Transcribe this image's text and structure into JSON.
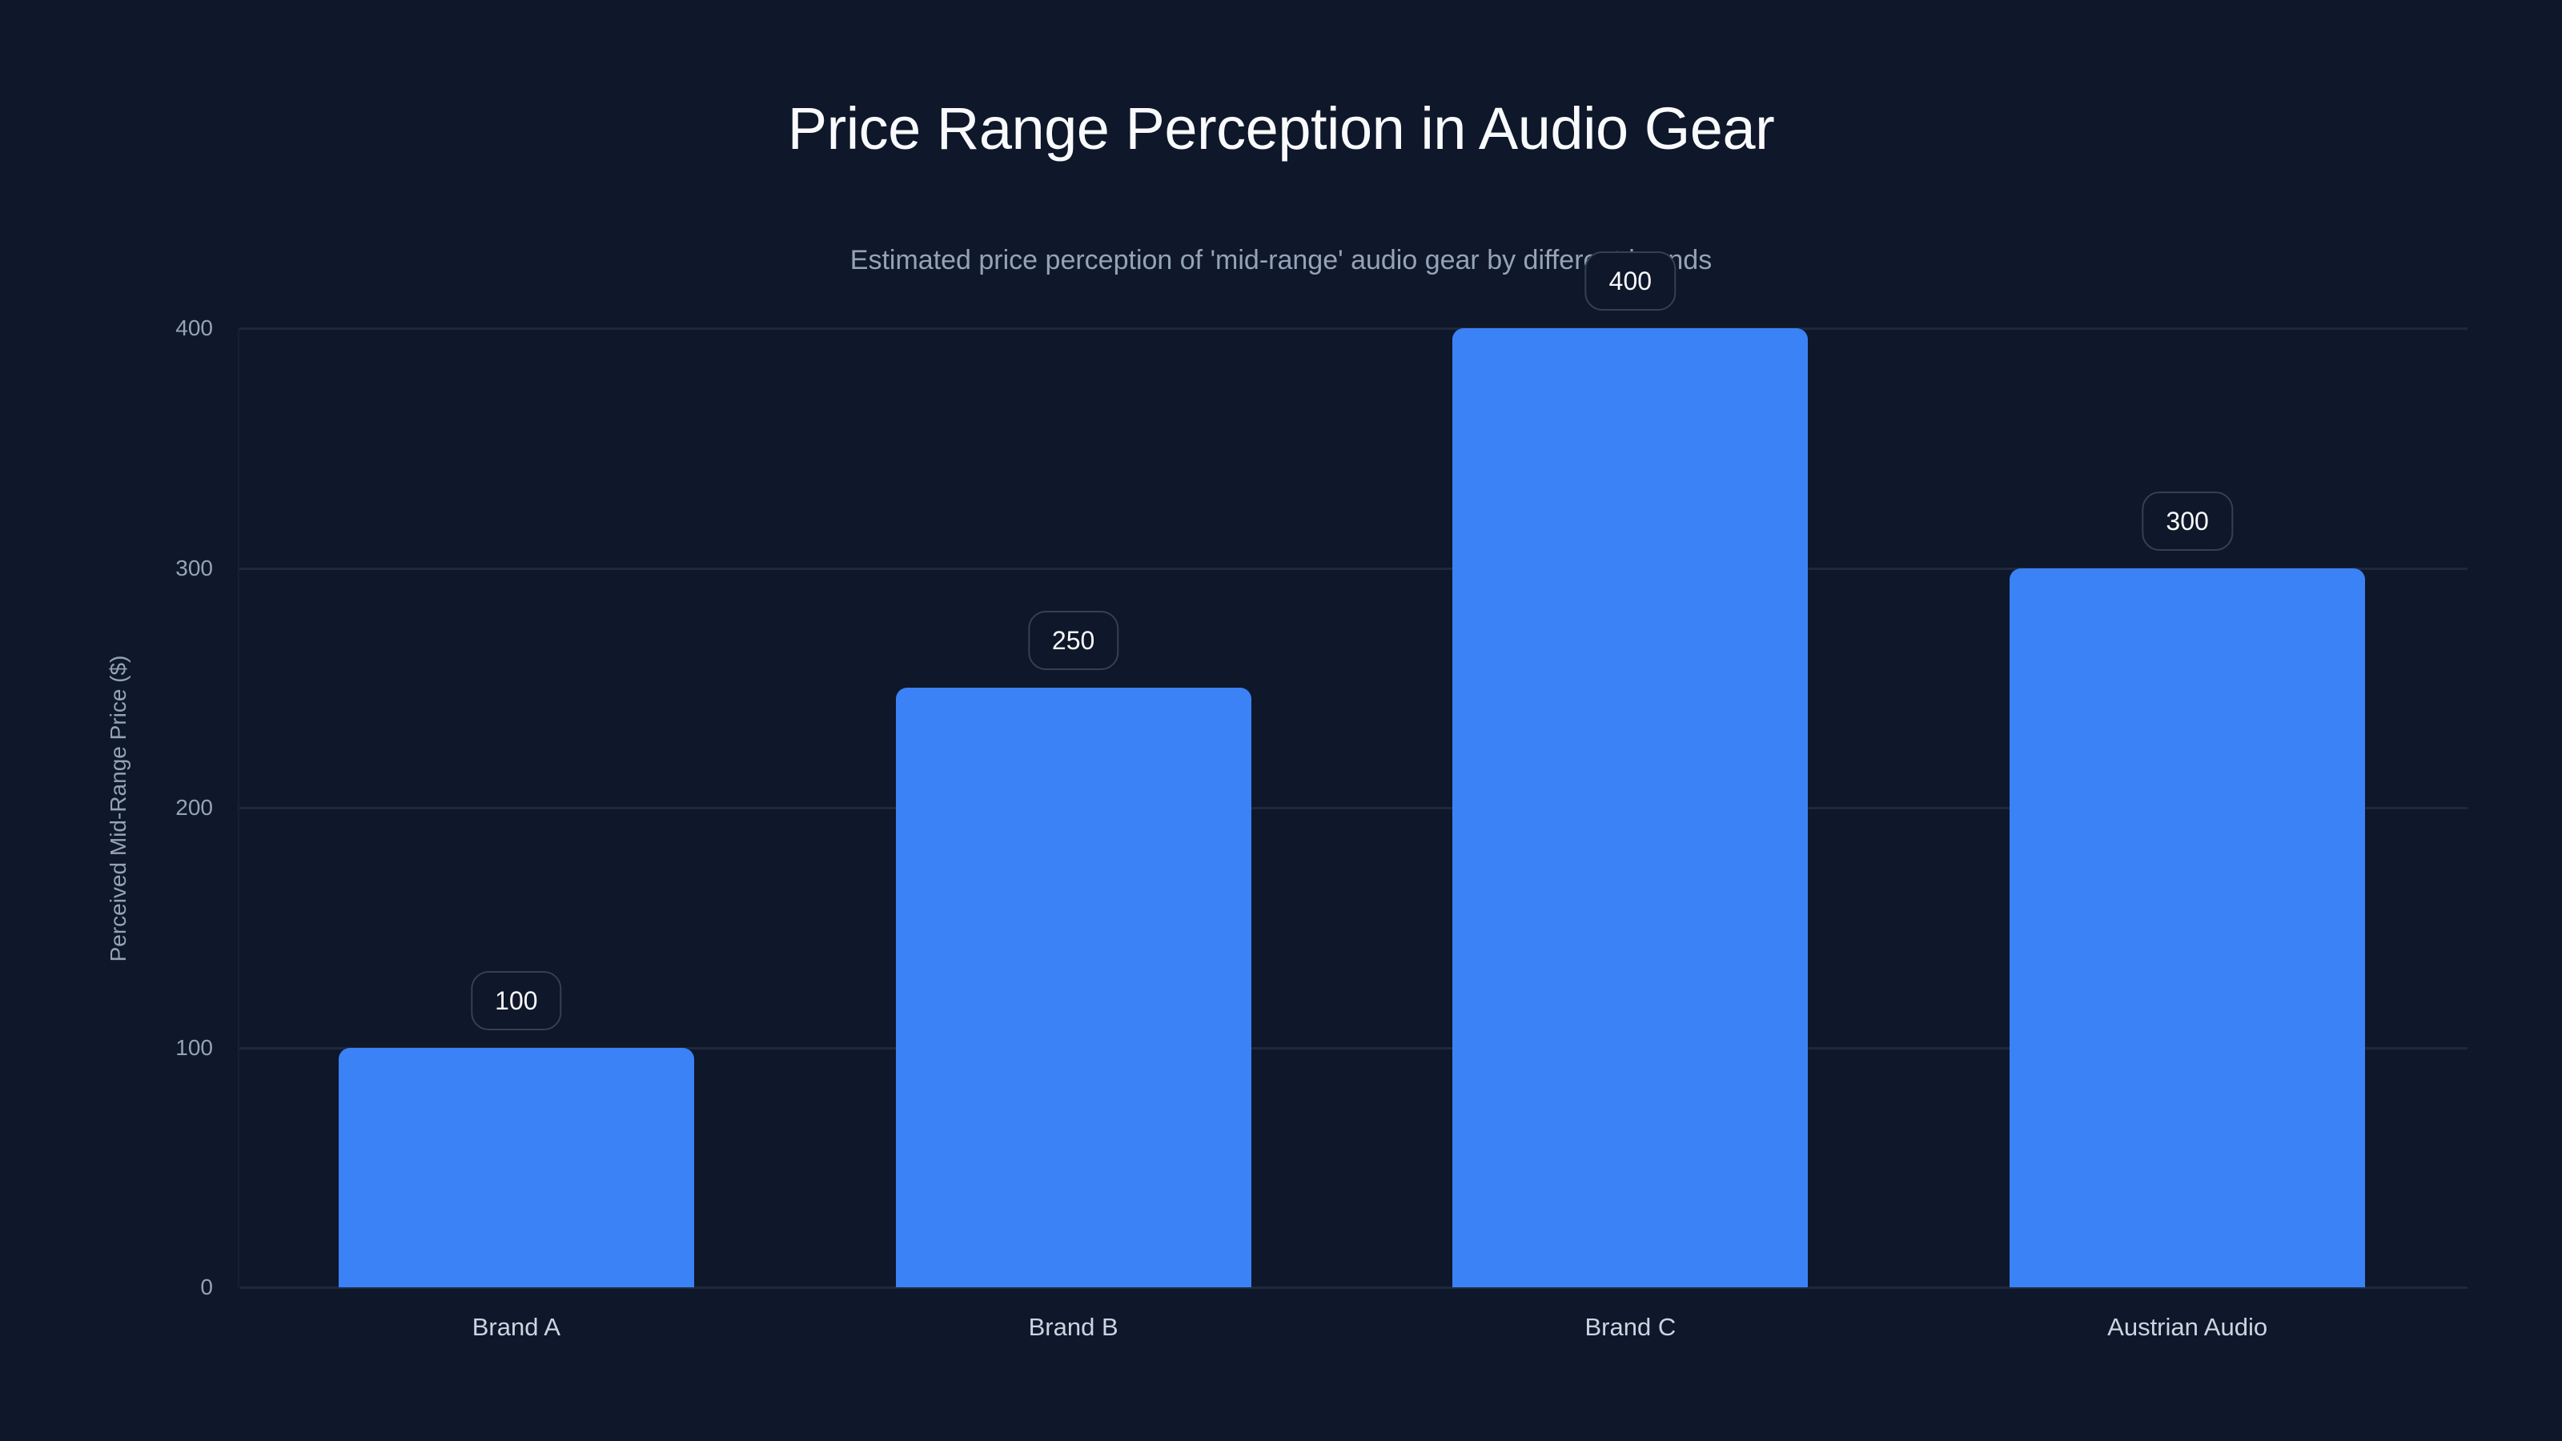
{
  "header": {
    "title": "Price Range Perception in Audio Gear",
    "subtitle": "Estimated price perception of 'mid-range' audio gear by different brands"
  },
  "colors": {
    "background": "#0f172a",
    "bar": "#3b82f6",
    "grid": "#1e293b",
    "label_border": "#334155"
  },
  "axes": {
    "ylabel": "Perceived Mid-Range Price ($)",
    "yticks": [
      "0",
      "100",
      "200",
      "300",
      "400"
    ]
  },
  "bars": [
    {
      "category": "Brand A",
      "value": 100,
      "label": "100"
    },
    {
      "category": "Brand B",
      "value": 250,
      "label": "250"
    },
    {
      "category": "Brand C",
      "value": 400,
      "label": "400"
    },
    {
      "category": "Austrian Audio",
      "value": 300,
      "label": "300"
    }
  ],
  "chart_data": {
    "type": "bar",
    "title": "Price Range Perception in Audio Gear",
    "subtitle": "Estimated price perception of 'mid-range' audio gear by different brands",
    "categories": [
      "Brand A",
      "Brand B",
      "Brand C",
      "Austrian Audio"
    ],
    "values": [
      100,
      250,
      400,
      300
    ],
    "xlabel": "",
    "ylabel": "Perceived Mid-Range Price ($)",
    "ylim": [
      0,
      400
    ],
    "yticks": [
      0,
      100,
      200,
      300,
      400
    ],
    "grid": true,
    "data_labels": true,
    "legend": null
  }
}
